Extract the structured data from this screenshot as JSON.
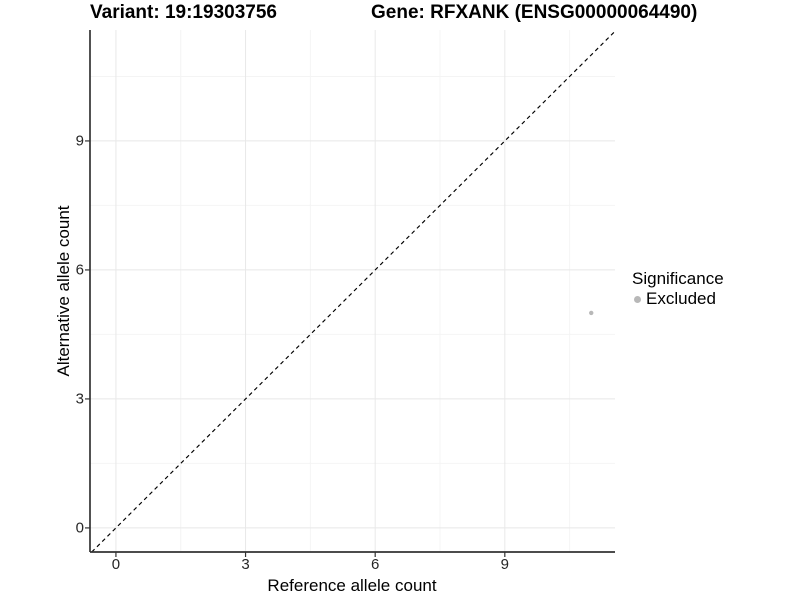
{
  "chart_data": {
    "type": "scatter",
    "titles": {
      "variant": "Variant: 19:19303756",
      "gene": "Gene: RFXANK (ENSG00000064490)"
    },
    "xlabel": "Reference allele count",
    "ylabel": "Alternative allele count",
    "xlim": [
      -0.6,
      11.55
    ],
    "ylim": [
      -0.56,
      11.58
    ],
    "x_major_ticks": [
      0,
      3,
      6,
      9
    ],
    "y_major_ticks": [
      0,
      3,
      6,
      9
    ],
    "x_minor_gridlines": [
      1.5,
      4.5,
      7.5,
      10.5
    ],
    "y_minor_gridlines": [
      1.5,
      4.5,
      7.5,
      10.5
    ],
    "grid": true,
    "identity_line": {
      "slope": 1,
      "intercept": 0,
      "style": "dashed",
      "color": "#000000"
    },
    "points": [
      {
        "x": 11,
        "y": 5,
        "series": "Excluded"
      }
    ],
    "legend": {
      "title": "Significance",
      "position": "right",
      "items": [
        {
          "label": "Excluded",
          "color": "#b8b8b8"
        }
      ]
    },
    "style": {
      "point_color": "#b8b8b8",
      "point_radius_px": 2.2,
      "legend_dot_radius_px": 3.5,
      "axis_color": "#333333",
      "grid_major_color": "#e8e8e8",
      "grid_minor_color": "#f4f4f4",
      "tick_label_color": "#262626",
      "background": "#ffffff"
    }
  }
}
